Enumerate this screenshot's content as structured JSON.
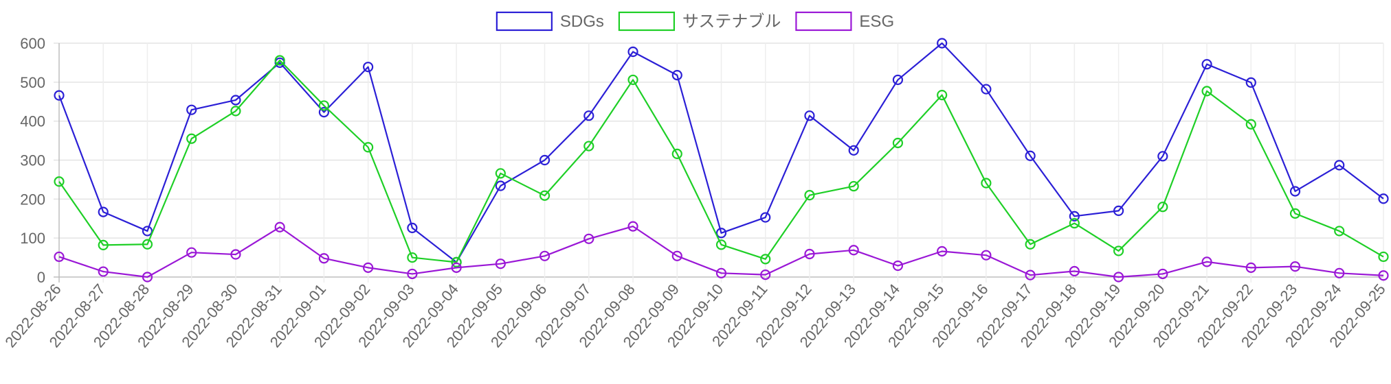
{
  "chart_data": {
    "type": "line",
    "title": "",
    "xlabel": "",
    "ylabel": "",
    "ylim": [
      0,
      600
    ],
    "yticks": [
      0,
      100,
      200,
      300,
      400,
      500,
      600
    ],
    "grid": true,
    "legend_position": "top-center",
    "x": [
      "2022-08-26",
      "2022-08-27",
      "2022-08-28",
      "2022-08-29",
      "2022-08-30",
      "2022-08-31",
      "2022-09-01",
      "2022-09-02",
      "2022-09-03",
      "2022-09-04",
      "2022-09-05",
      "2022-09-06",
      "2022-09-07",
      "2022-09-08",
      "2022-09-09",
      "2022-09-10",
      "2022-09-11",
      "2022-09-12",
      "2022-09-13",
      "2022-09-14",
      "2022-09-15",
      "2022-09-16",
      "2022-09-17",
      "2022-09-18",
      "2022-09-19",
      "2022-09-20",
      "2022-09-21",
      "2022-09-22",
      "2022-09-23",
      "2022-09-24",
      "2022-09-25"
    ],
    "series": [
      {
        "name": "SDGs",
        "color": "#2b1fd6",
        "values": [
          466,
          167,
          118,
          429,
          454,
          550,
          423,
          539,
          126,
          38,
          234,
          300,
          414,
          578,
          518,
          113,
          153,
          414,
          325,
          506,
          600,
          482,
          311,
          156,
          170,
          310,
          546,
          499,
          220,
          287,
          201
        ]
      },
      {
        "name": "サステナブル",
        "color": "#1ecf26",
        "values": [
          245,
          82,
          84,
          355,
          426,
          556,
          440,
          333,
          50,
          38,
          266,
          209,
          336,
          506,
          316,
          83,
          46,
          210,
          233,
          344,
          467,
          241,
          84,
          138,
          67,
          180,
          477,
          392,
          163,
          118,
          52
        ]
      },
      {
        "name": "ESG",
        "color": "#9a17d6",
        "values": [
          52,
          14,
          0,
          63,
          58,
          128,
          48,
          24,
          8,
          24,
          34,
          54,
          98,
          130,
          54,
          10,
          6,
          59,
          69,
          29,
          66,
          56,
          5,
          15,
          0,
          8,
          39,
          24,
          27,
          10,
          4
        ]
      }
    ]
  }
}
